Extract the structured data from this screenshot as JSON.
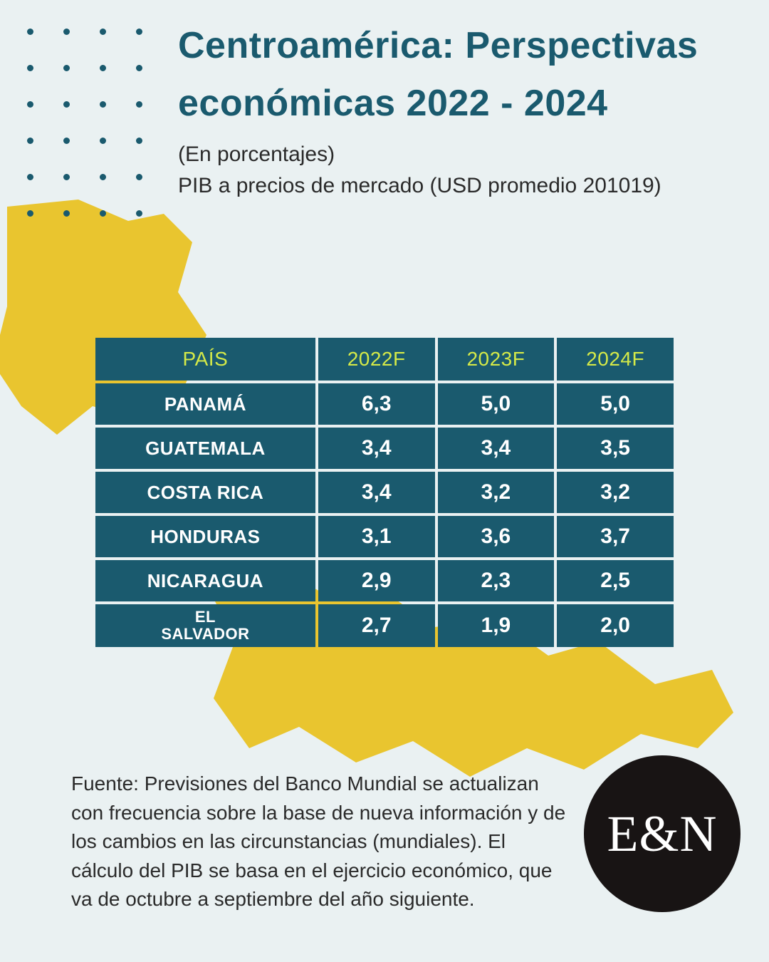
{
  "title": "Centroamérica: Perspectivas económicas 2022 - 2024",
  "subtitle_line1": "(En porcentajes)",
  "subtitle_line2": "PIB a precios de mercado (USD promedio 201019)",
  "table": {
    "headers": [
      "PAÍS",
      "2022F",
      "2023F",
      "2024F"
    ],
    "header_color": "#d4e948",
    "cell_bg": "#1a5a6e",
    "cell_text": "#ffffff",
    "rows": [
      {
        "country": "PANAMÁ",
        "y2022": "6,3",
        "y2023": "5,0",
        "y2024": "5,0"
      },
      {
        "country": "GUATEMALA",
        "y2022": "3,4",
        "y2023": "3,4",
        "y2024": "3,5"
      },
      {
        "country": "COSTA RICA",
        "y2022": "3,4",
        "y2023": "3,2",
        "y2024": "3,2"
      },
      {
        "country": "HONDURAS",
        "y2022": "3,1",
        "y2023": "3,6",
        "y2024": "3,7"
      },
      {
        "country": "NICARAGUA",
        "y2022": "2,9",
        "y2023": "2,3",
        "y2024": "2,5"
      },
      {
        "country": "EL SALVADOR",
        "y2022": "2,7",
        "y2023": "1,9",
        "y2024": "2,0",
        "small": true
      }
    ]
  },
  "source": "Fuente: Previsiones del Banco Mundial se actualizan con frecuencia sobre la base de nueva información y de los cambios en las circunstancias (mundiales). El cálculo del PIB se basa en el ejercicio económico, que va de octubre a septiembre del año siguiente.",
  "logo": "E&N",
  "colors": {
    "background": "#eaf1f2",
    "accent_dark": "#1a5a6e",
    "accent_yellow": "#e9c52f",
    "dot": "#1a5a6e",
    "logo_bg": "#181414"
  },
  "dot_grid": {
    "rows": 6,
    "cols": 4
  },
  "typography": {
    "title_fontsize": 52,
    "subtitle_fontsize": 30,
    "table_header_fontsize": 28,
    "table_cell_fontsize": 30,
    "source_fontsize": 28,
    "logo_fontsize": 72
  }
}
